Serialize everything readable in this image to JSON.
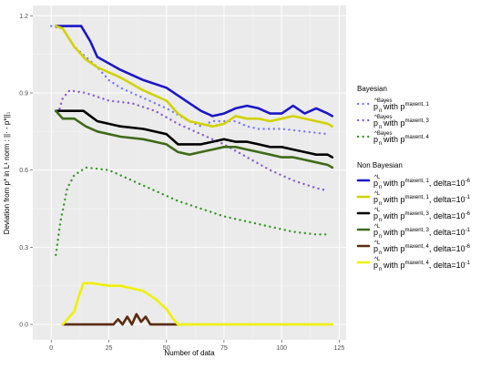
{
  "chart_data": {
    "type": "line",
    "xlabel": "Number of data",
    "ylabel": "Deviation from p* in L¹ norm : ||· - p*||₁",
    "xlim": [
      -8,
      128
    ],
    "ylim": [
      -0.06,
      1.24
    ],
    "x_ticks": [
      0,
      25,
      50,
      75,
      100,
      125
    ],
    "x_tick_labels": [
      "0",
      "25",
      "50",
      "75",
      "100",
      "125"
    ],
    "y_ticks": [
      0.0,
      0.3,
      0.6,
      0.9,
      1.2
    ],
    "y_tick_labels": [
      "0.0",
      "0.3",
      "0.6",
      "0.9",
      "1.2"
    ],
    "grid": true,
    "legend_position": "right",
    "legend_groups": [
      {
        "title": "Bayesian",
        "entries": [
          0,
          1,
          2
        ]
      },
      {
        "title": "Non Bayesian",
        "entries": [
          3,
          4,
          5,
          6,
          7,
          8
        ]
      }
    ],
    "series": [
      {
        "base": "p",
        "accent": "^Bayes",
        "sub": "n",
        "mid": " with p",
        "sup": "maxent, 1",
        "tail": "",
        "color": "#7b7bff",
        "style": "dotted",
        "x": [
          0,
          5,
          10,
          20,
          25,
          30,
          40,
          50,
          60,
          65,
          70,
          80,
          85,
          90,
          100,
          110,
          120
        ],
        "y": [
          1.16,
          1.15,
          1.08,
          1.0,
          0.95,
          0.92,
          0.88,
          0.84,
          0.79,
          0.77,
          0.79,
          0.79,
          0.77,
          0.76,
          0.76,
          0.75,
          0.74
        ]
      },
      {
        "base": "p",
        "accent": "^Bayes",
        "sub": "n",
        "mid": " with p",
        "sup": "maxent, 3",
        "tail": "",
        "color": "#8a60d0",
        "style": "dotted",
        "x": [
          3,
          5,
          8,
          15,
          25,
          35,
          45,
          55,
          65,
          75,
          85,
          95,
          105,
          115,
          120
        ],
        "y": [
          0.82,
          0.88,
          0.91,
          0.9,
          0.87,
          0.86,
          0.83,
          0.78,
          0.74,
          0.7,
          0.65,
          0.6,
          0.56,
          0.53,
          0.52
        ]
      },
      {
        "base": "p",
        "accent": "^Bayes",
        "sub": "n",
        "mid": " with p",
        "sup": "maxent, 4",
        "tail": "",
        "color": "#3a9a2a",
        "style": "dotted",
        "x": [
          2,
          4,
          7,
          10,
          15,
          25,
          35,
          45,
          55,
          65,
          75,
          85,
          95,
          105,
          115,
          120
        ],
        "y": [
          0.27,
          0.4,
          0.53,
          0.58,
          0.61,
          0.6,
          0.56,
          0.52,
          0.48,
          0.45,
          0.42,
          0.4,
          0.38,
          0.36,
          0.35,
          0.35
        ]
      },
      {
        "base": "p",
        "accent": "^L",
        "sub": "n",
        "mid": " with p",
        "sup": "maxent, 1",
        "tail": ", delta=10",
        "tail_sup": "-6",
        "color": "#1a16c8",
        "style": "solid",
        "x": [
          2,
          7,
          13,
          17,
          20,
          30,
          40,
          50,
          60,
          65,
          70,
          75,
          80,
          85,
          90,
          95,
          100,
          105,
          110,
          115,
          120,
          122
        ],
        "y": [
          1.16,
          1.16,
          1.16,
          1.1,
          1.04,
          0.99,
          0.95,
          0.92,
          0.86,
          0.83,
          0.81,
          0.82,
          0.84,
          0.85,
          0.84,
          0.82,
          0.82,
          0.85,
          0.82,
          0.84,
          0.82,
          0.81
        ]
      },
      {
        "base": "p",
        "accent": "^L",
        "sub": "n",
        "mid": " with p",
        "sup": "maxent, 1",
        "tail": ", delta=10",
        "tail_sup": "-1",
        "color": "#d2d200",
        "style": "solid",
        "x": [
          2,
          5,
          10,
          15,
          20,
          30,
          40,
          50,
          55,
          60,
          65,
          70,
          75,
          80,
          85,
          90,
          95,
          100,
          105,
          110,
          115,
          120,
          122
        ],
        "y": [
          1.16,
          1.15,
          1.08,
          1.03,
          1.0,
          0.96,
          0.91,
          0.87,
          0.82,
          0.79,
          0.78,
          0.77,
          0.78,
          0.81,
          0.8,
          0.8,
          0.79,
          0.8,
          0.81,
          0.8,
          0.79,
          0.78,
          0.77
        ]
      },
      {
        "base": "p",
        "accent": "^L",
        "sub": "n",
        "mid": " with p",
        "sup": "maxent, 3",
        "tail": ", delta=10",
        "tail_sup": "-6",
        "color": "#000000",
        "style": "solid",
        "x": [
          2,
          5,
          10,
          14,
          20,
          30,
          40,
          50,
          55,
          60,
          65,
          70,
          75,
          80,
          85,
          90,
          95,
          100,
          105,
          110,
          115,
          120,
          122
        ],
        "y": [
          0.83,
          0.83,
          0.83,
          0.83,
          0.79,
          0.77,
          0.76,
          0.74,
          0.7,
          0.7,
          0.7,
          0.71,
          0.72,
          0.71,
          0.71,
          0.7,
          0.69,
          0.69,
          0.68,
          0.67,
          0.66,
          0.66,
          0.65
        ]
      },
      {
        "base": "p",
        "accent": "^L",
        "sub": "n",
        "mid": " with p",
        "sup": "maxent, 3",
        "tail": ", delta=10",
        "tail_sup": "-1",
        "color": "#3f6b1a",
        "style": "solid",
        "x": [
          2,
          5,
          10,
          15,
          20,
          30,
          40,
          50,
          55,
          60,
          65,
          70,
          75,
          80,
          85,
          90,
          95,
          100,
          105,
          110,
          115,
          120,
          122
        ],
        "y": [
          0.83,
          0.8,
          0.8,
          0.77,
          0.75,
          0.73,
          0.72,
          0.7,
          0.67,
          0.66,
          0.67,
          0.68,
          0.69,
          0.69,
          0.68,
          0.67,
          0.66,
          0.65,
          0.65,
          0.64,
          0.63,
          0.62,
          0.61
        ]
      },
      {
        "base": "p",
        "accent": "^L",
        "sub": "n",
        "mid": " with p",
        "sup": "maxent, 4",
        "tail": ", delta=10",
        "tail_sup": "-6",
        "color": "#5b2b10",
        "style": "solid",
        "x": [
          5,
          10,
          20,
          27,
          29,
          31,
          33,
          35,
          37,
          39,
          41,
          43,
          45,
          55
        ],
        "y": [
          0.0,
          0.0,
          0.0,
          0.0,
          0.02,
          0.0,
          0.03,
          0.0,
          0.04,
          0.01,
          0.03,
          0.0,
          0.0,
          0.0
        ]
      },
      {
        "base": "p",
        "accent": "^L",
        "sub": "n",
        "mid": " with p",
        "sup": "maxent, 4",
        "tail": ", delta=10",
        "tail_sup": "-1",
        "color": "#f0f000",
        "style": "solid",
        "x": [
          5,
          10,
          12,
          14,
          18,
          25,
          30,
          35,
          40,
          45,
          50,
          53,
          55,
          60,
          80,
          100,
          122
        ],
        "y": [
          0.0,
          0.05,
          0.11,
          0.16,
          0.16,
          0.15,
          0.15,
          0.14,
          0.13,
          0.1,
          0.06,
          0.02,
          0.0,
          0.0,
          0.0,
          0.0,
          0.0
        ]
      }
    ]
  }
}
